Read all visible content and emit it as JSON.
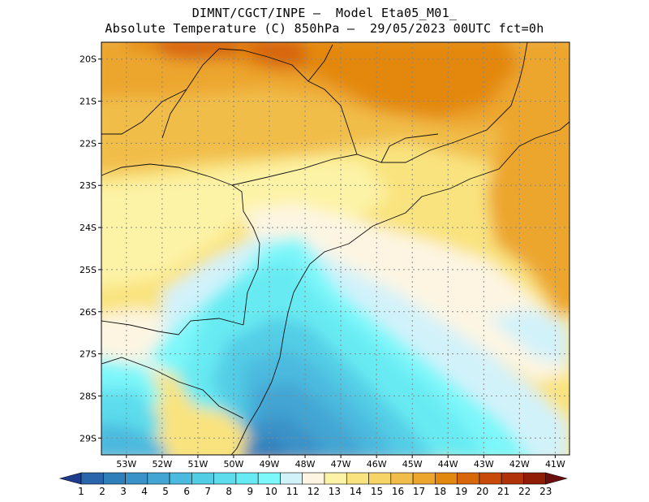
{
  "header": {
    "line1": "DIMNT/CGCT/INPE —  Model Eta05_M01_",
    "line2": "Absolute Temperature (C) 850hPa —  29/05/2023 00UTC fct=0h"
  },
  "map": {
    "lat_labels": [
      "20S",
      "21S",
      "22S",
      "23S",
      "24S",
      "25S",
      "26S",
      "27S",
      "28S",
      "29S"
    ],
    "lon_labels": [
      "53W",
      "52W",
      "51W",
      "50W",
      "49W",
      "48W",
      "47W",
      "46W",
      "45W",
      "44W",
      "43W",
      "42W",
      "41W"
    ],
    "extent": {
      "lon_min": -53.7,
      "lon_max": -40.6,
      "lat_min": -29.4,
      "lat_max": -19.6
    },
    "grid": "dotted"
  },
  "colorbar": {
    "labels": [
      "1",
      "2",
      "3",
      "4",
      "5",
      "6",
      "7",
      "8",
      "9",
      "10",
      "11",
      "12",
      "13",
      "14",
      "15",
      "16",
      "17",
      "18",
      "19",
      "20",
      "21",
      "22",
      "23"
    ],
    "colors": [
      "#1e3c8c",
      "#2a64aa",
      "#2f7fbb",
      "#3a92c8",
      "#42a5d3",
      "#4cb9de",
      "#52cde6",
      "#5cdcec",
      "#68eaf2",
      "#7cf7fa",
      "#d2f2fa",
      "#fdf5e2",
      "#fdf3a6",
      "#f9e37e",
      "#f6d466",
      "#f1bd4a",
      "#eca62e",
      "#e3880e",
      "#d8660a",
      "#c84a0a",
      "#b03208",
      "#911d06",
      "#6a0e0e"
    ]
  }
}
